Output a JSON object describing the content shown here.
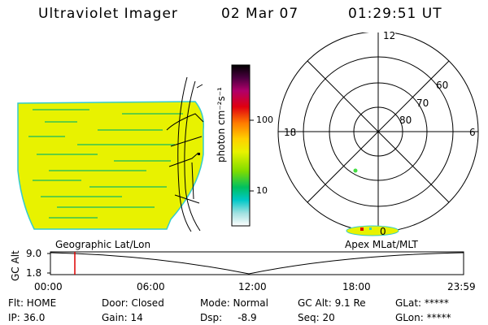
{
  "header": {
    "instrument": "Ultraviolet Imager",
    "date": "02 Mar 07",
    "time": "01:29:51 UT"
  },
  "colorbar": {
    "label": "photon cm⁻²s⁻¹",
    "ticks": [
      "100",
      "10"
    ]
  },
  "polar": {
    "lat_labels": [
      "80",
      "70",
      "60"
    ],
    "mlt_labels": [
      "12",
      "18",
      "6",
      "0"
    ]
  },
  "map_labels": {
    "left": "Geographic Lat/Lon",
    "right": "Apex MLat/MLT"
  },
  "altitude_plot": {
    "ylabel": "GC Alt",
    "yticks": [
      "9.0",
      "1.8"
    ],
    "xticks": [
      "00:00",
      "06:00",
      "12:00",
      "18:00",
      "23:59"
    ]
  },
  "info": {
    "flt": "Flt: HOME",
    "ip": "IP: 36.0",
    "door": "Door: Closed",
    "gain": "Gain: 14",
    "mode": "Mode: Normal",
    "dsp": "Dsp:     -8.9",
    "gcalt": "GC Alt: 9.1 Re",
    "seq": "Seq: 20",
    "glat": "GLat: *****",
    "glon": "GLon: *****"
  },
  "colors": {
    "fill_yellow": "#e8f200",
    "streak_green": "#44cc44",
    "edge_cyan": "#33cccc",
    "marker_red": "#dd0000"
  }
}
